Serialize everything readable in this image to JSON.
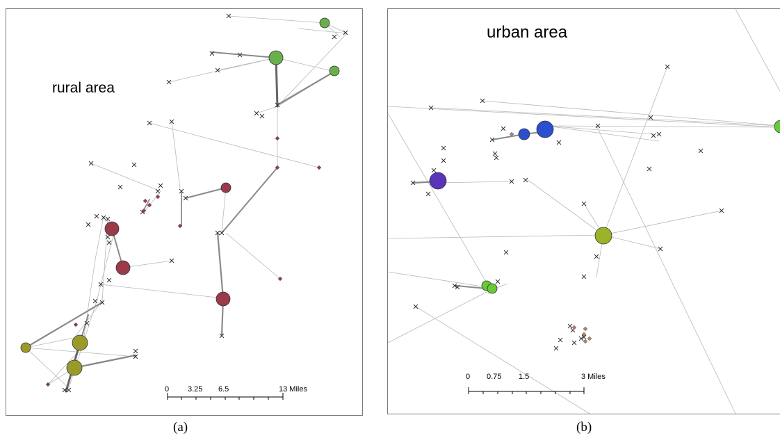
{
  "panels": [
    {
      "caption": "(a)",
      "area_label": "rural area",
      "scalebar": {
        "ticks": [
          "0",
          "3.25",
          "6.5",
          "13 Miles"
        ]
      },
      "colors": {
        "cluster_red": "#9a3a4a",
        "cluster_olive": "#9a9a2a",
        "cluster_green": "#6ab04a",
        "edge": "#a0a0a0"
      }
    },
    {
      "caption": "(b)",
      "area_label": "urban area",
      "scalebar": {
        "ticks": [
          "0",
          "0.75",
          "1.5",
          "3 Miles"
        ]
      },
      "colors": {
        "cluster_blue": "#2a4fcf",
        "cluster_purple": "#5a34b8",
        "cluster_green": "#66cc33",
        "cluster_olive": "#99b32a",
        "point_brown": "#c0806a"
      }
    }
  ]
}
